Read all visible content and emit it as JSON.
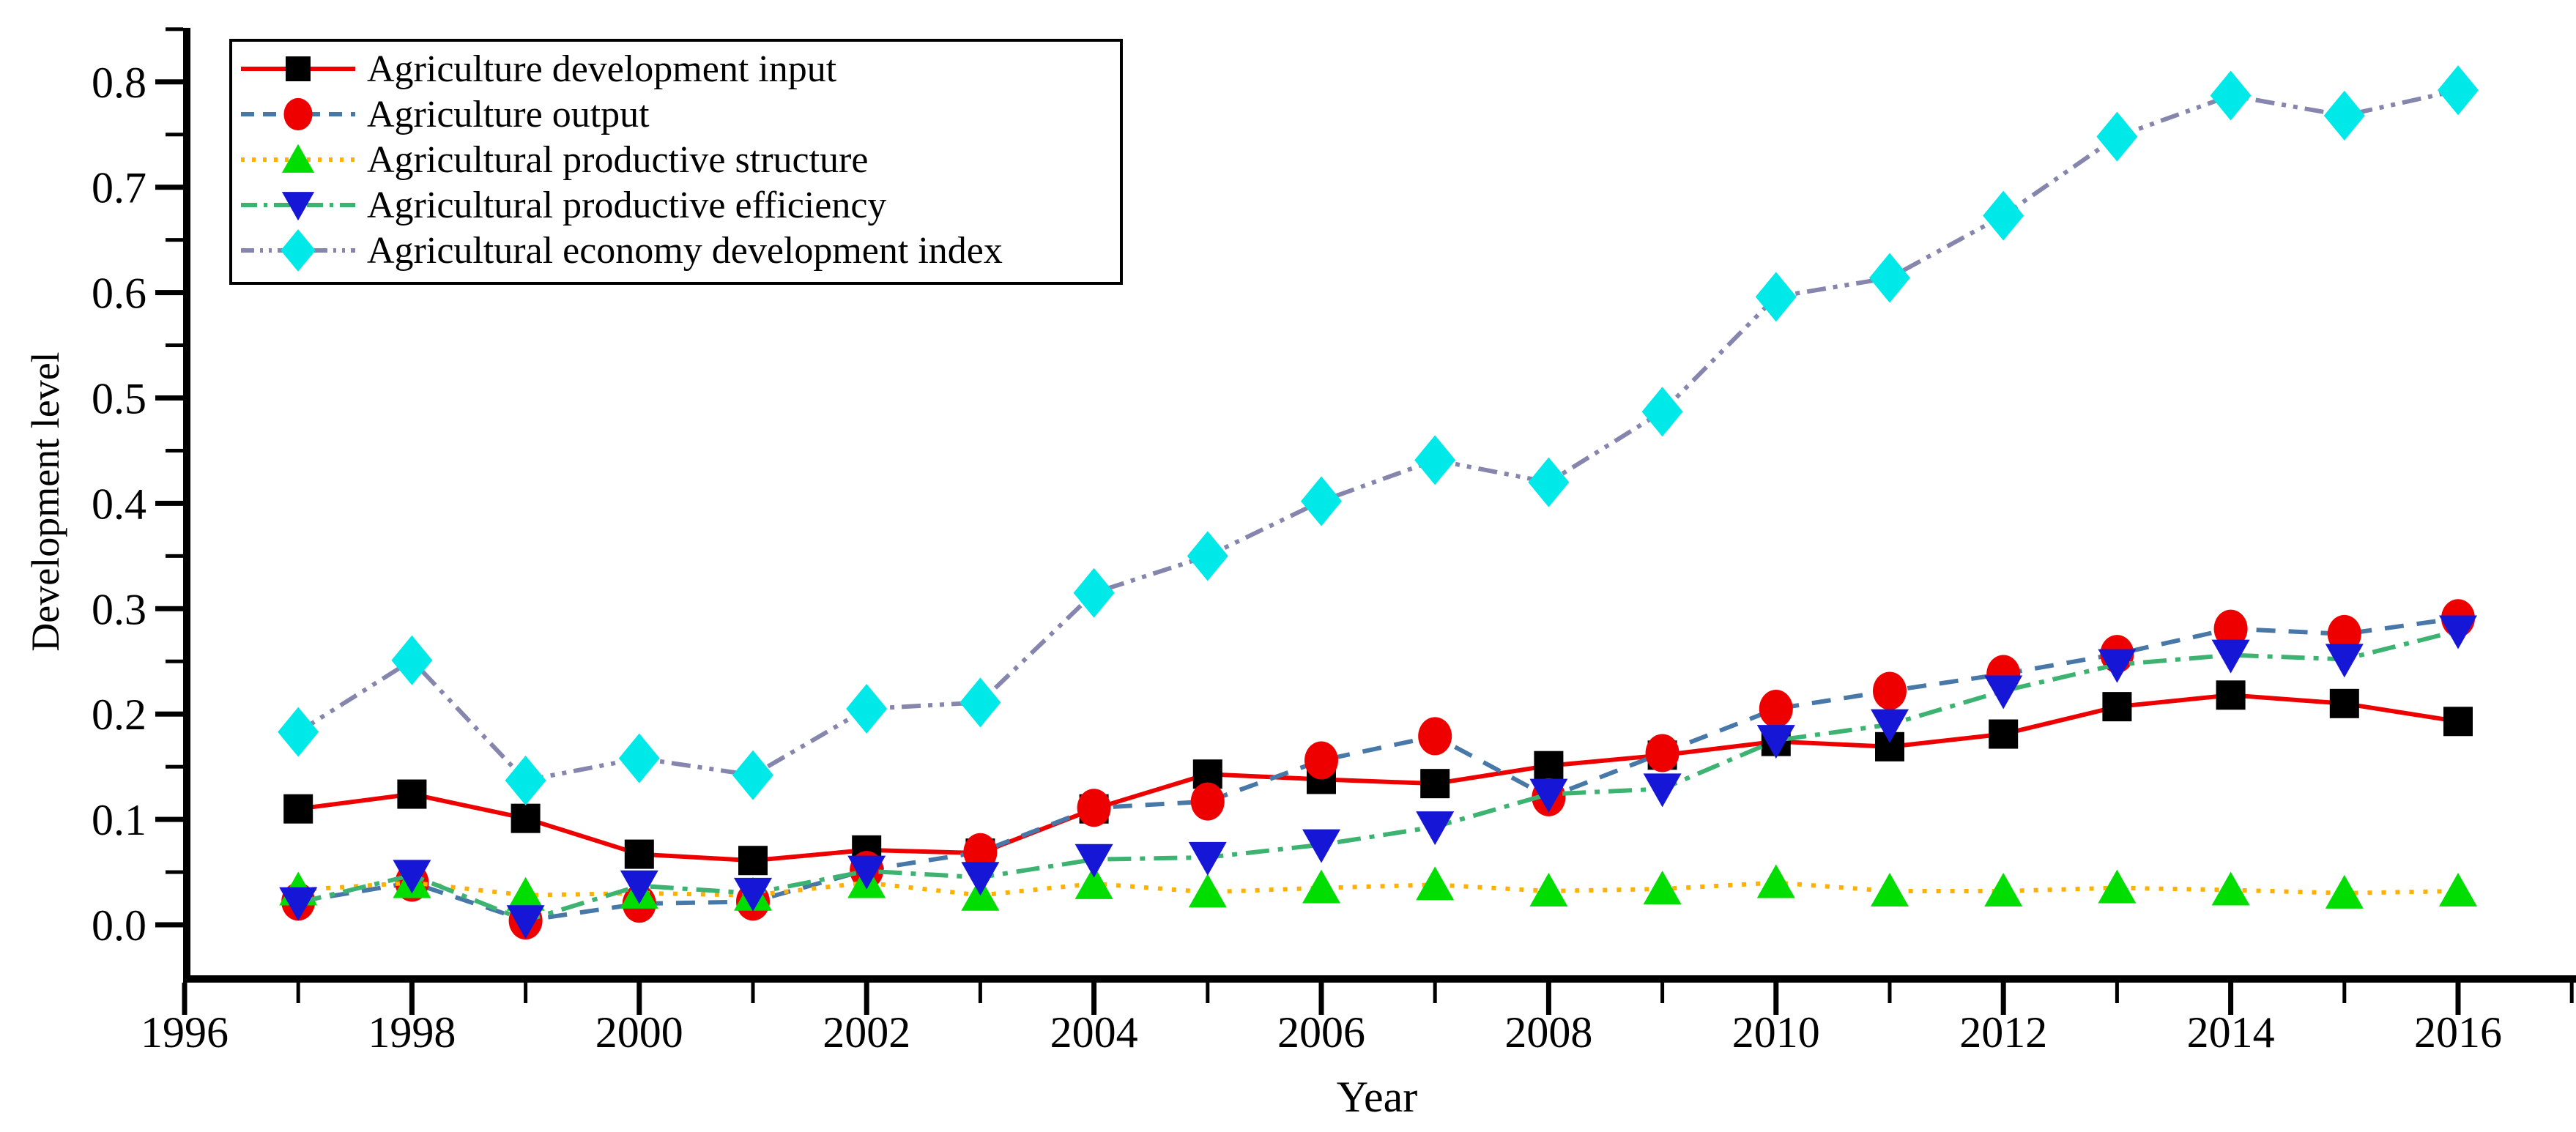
{
  "figure": {
    "background": "#ffffff",
    "frame": "open-top-right"
  },
  "axes": {
    "x": {
      "label": "Year",
      "min": 1996,
      "max": 2017,
      "major_tick_labels": [
        "1996",
        "1998",
        "2000",
        "2002",
        "2004",
        "2006",
        "2008",
        "2010",
        "2012",
        "2014",
        "2016"
      ],
      "major_tick_years": [
        1996,
        1998,
        2000,
        2002,
        2004,
        2006,
        2008,
        2010,
        2012,
        2014,
        2016
      ],
      "minor_tick_years": [
        1997,
        1999,
        2001,
        2003,
        2005,
        2007,
        2009,
        2011,
        2013,
        2015,
        2017
      ]
    },
    "y": {
      "label": "Development level",
      "min": -0.05,
      "max": 0.85,
      "major_tick_labels": [
        "0.0",
        "0.1",
        "0.2",
        "0.3",
        "0.4",
        "0.5",
        "0.6",
        "0.7",
        "0.8"
      ],
      "major_tick_values": [
        0.0,
        0.1,
        0.2,
        0.3,
        0.4,
        0.5,
        0.6,
        0.7,
        0.8
      ],
      "minor_tick_values": [
        0.05,
        0.15,
        0.25,
        0.35,
        0.45,
        0.55,
        0.65,
        0.75,
        0.85
      ]
    }
  },
  "legend": {
    "position": "top-left",
    "entries": [
      {
        "label": "Agriculture development input",
        "marker": "square",
        "marker_color": "#000000",
        "line_color": "#ee0000",
        "line_style": "solid"
      },
      {
        "label": "Agriculture output",
        "marker": "circle",
        "marker_color": "#ee0000",
        "line_color": "#4878a8",
        "line_style": "dashed"
      },
      {
        "label": "Agricultural productive structure",
        "marker": "triangle-up",
        "marker_color": "#00dd00",
        "line_color": "#ffb000",
        "line_style": "dotted"
      },
      {
        "label": "Agricultural productive efficiency",
        "marker": "triangle-down",
        "marker_color": "#1616d6",
        "line_color": "#3cb371",
        "line_style": "dashdot"
      },
      {
        "label": "Agricultural economy development index",
        "marker": "diamond",
        "marker_color": "#00e9e9",
        "line_color": "#8585ad",
        "line_style": "dashdotdot"
      }
    ]
  },
  "chart_data": {
    "type": "line",
    "title": "",
    "xlabel": "Year",
    "ylabel": "Development level",
    "xlim": [
      1996,
      2017
    ],
    "ylim": [
      -0.05,
      0.85
    ],
    "grid": false,
    "legend_position": "top-left",
    "x": [
      1997,
      1998,
      1999,
      2000,
      2001,
      2002,
      2003,
      2004,
      2005,
      2006,
      2007,
      2008,
      2009,
      2010,
      2011,
      2012,
      2013,
      2014,
      2015,
      2016
    ],
    "series": [
      {
        "name": "Agriculture development input",
        "marker": "square",
        "marker_color": "#000000",
        "line_color": "#ee0000",
        "line_style": "solid",
        "values": [
          0.11,
          0.124,
          0.101,
          0.067,
          0.061,
          0.071,
          0.068,
          0.11,
          0.143,
          0.138,
          0.134,
          0.151,
          0.161,
          0.174,
          0.169,
          0.181,
          0.207,
          0.218,
          0.21,
          0.193
        ]
      },
      {
        "name": "Agriculture output",
        "marker": "circle",
        "marker_color": "#ee0000",
        "line_color": "#4878a8",
        "line_style": "dashed",
        "values": [
          0.022,
          0.04,
          0.004,
          0.02,
          0.022,
          0.052,
          0.069,
          0.111,
          0.117,
          0.156,
          0.179,
          0.121,
          0.163,
          0.205,
          0.222,
          0.238,
          0.257,
          0.281,
          0.276,
          0.291
        ]
      },
      {
        "name": "Agricultural productive structure",
        "marker": "triangle-up",
        "marker_color": "#00dd00",
        "line_color": "#ffb000",
        "line_style": "dotted",
        "values": [
          0.033,
          0.04,
          0.028,
          0.03,
          0.028,
          0.04,
          0.028,
          0.039,
          0.031,
          0.035,
          0.038,
          0.032,
          0.034,
          0.04,
          0.032,
          0.032,
          0.035,
          0.033,
          0.03,
          0.032
        ]
      },
      {
        "name": "Agricultural productive efficiency",
        "marker": "triangle-down",
        "marker_color": "#1616d6",
        "line_color": "#3cb371",
        "line_style": "dashdot",
        "values": [
          0.021,
          0.047,
          0.004,
          0.037,
          0.03,
          0.051,
          0.045,
          0.062,
          0.064,
          0.076,
          0.093,
          0.124,
          0.129,
          0.175,
          0.19,
          0.222,
          0.247,
          0.256,
          0.252,
          0.279
        ]
      },
      {
        "name": "Agricultural economy development index",
        "marker": "diamond",
        "marker_color": "#00e9e9",
        "line_color": "#8585ad",
        "line_style": "dashdotdot",
        "values": [
          0.183,
          0.251,
          0.137,
          0.158,
          0.142,
          0.205,
          0.211,
          0.315,
          0.35,
          0.402,
          0.441,
          0.42,
          0.487,
          0.596,
          0.614,
          0.673,
          0.748,
          0.787,
          0.768,
          0.792
        ]
      }
    ]
  }
}
